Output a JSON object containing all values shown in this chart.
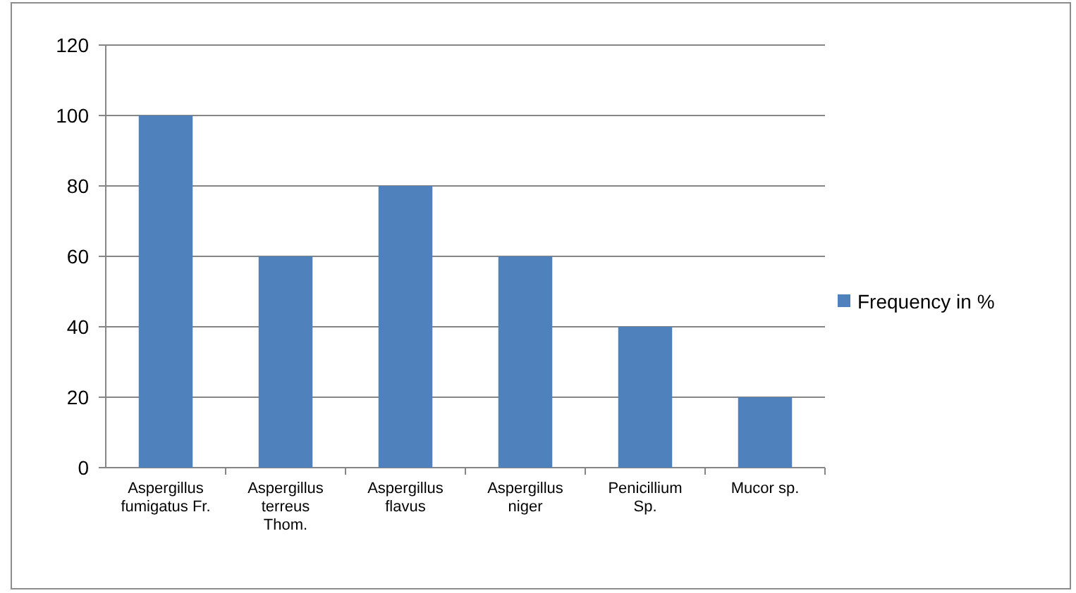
{
  "chart_data": {
    "type": "bar",
    "categories": [
      "Aspergillus fumigatus Fr.",
      "Aspergillus terreus Thom.",
      "Aspergillus flavus",
      "Aspergillus niger",
      "Penicillium Sp.",
      "Mucor sp."
    ],
    "series": [
      {
        "name": "Frequency in %",
        "color": "#4f81bd",
        "values": [
          100,
          60,
          80,
          60,
          40,
          20
        ]
      }
    ],
    "ylim": [
      0,
      120
    ],
    "yticks": [
      0,
      20,
      40,
      60,
      80,
      100,
      120
    ],
    "grid": "y",
    "legend": "right"
  }
}
